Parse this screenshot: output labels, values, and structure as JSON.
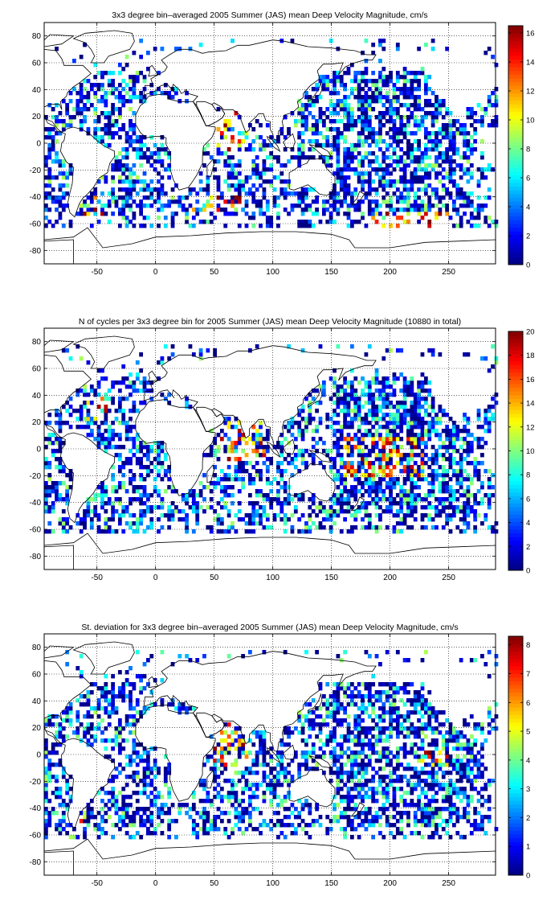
{
  "chart_data": [
    {
      "type": "heatmap",
      "title": "3x3 degree bin–averaged 2005 Summer (JAS) mean Deep Velocity Magnitude, cm/s",
      "xlabel": "",
      "ylabel": "",
      "xlim": [
        -95,
        290
      ],
      "ylim": [
        -90,
        90
      ],
      "x_ticks": [
        -50,
        0,
        50,
        100,
        150,
        200,
        250
      ],
      "y_ticks": [
        -80,
        -60,
        -40,
        -20,
        0,
        20,
        40,
        60,
        80
      ],
      "grid": true,
      "colorbar": {
        "min": 0,
        "max": 16.5,
        "ticks": [
          0,
          2,
          4,
          6,
          8,
          10,
          12,
          14,
          16
        ],
        "colormap": "jet"
      },
      "bin_size_deg": 3,
      "seed": 11,
      "hot_lon_bands": [
        [
          -70,
          -45,
          -60,
          -40
        ],
        [
          30,
          75,
          -50,
          -35
        ],
        [
          185,
          250,
          -62,
          -50
        ],
        [
          50,
          80,
          -5,
          25
        ]
      ]
    },
    {
      "type": "heatmap",
      "title": "N of cycles per 3x3 degree bin for 2005 Summer (JAS) mean Deep Velocity Magnitude (10880 in total)",
      "xlabel": "",
      "ylabel": "",
      "xlim": [
        -95,
        290
      ],
      "ylim": [
        -90,
        90
      ],
      "x_ticks": [
        -50,
        0,
        50,
        100,
        150,
        200,
        250
      ],
      "y_ticks": [
        -80,
        -60,
        -40,
        -20,
        0,
        20,
        40,
        60,
        80
      ],
      "grid": true,
      "colorbar": {
        "min": 0,
        "max": 20,
        "ticks": [
          0,
          2,
          4,
          6,
          8,
          10,
          12,
          14,
          16,
          18,
          20
        ],
        "colormap": "jet"
      },
      "bin_size_deg": 3,
      "seed": 23,
      "hot_lon_bands": [
        [
          55,
          95,
          -10,
          25
        ],
        [
          160,
          230,
          -20,
          10
        ],
        [
          -60,
          -40,
          20,
          40
        ]
      ]
    },
    {
      "type": "heatmap",
      "title": "St. deviation for 3x3 degree bin–averaged 2005 Summer (JAS) mean Deep Velocity Magnitude, cm/s",
      "xlabel": "",
      "ylabel": "",
      "xlim": [
        -95,
        290
      ],
      "ylim": [
        -90,
        90
      ],
      "x_ticks": [
        -50,
        0,
        50,
        100,
        150,
        200,
        250
      ],
      "y_ticks": [
        -80,
        -60,
        -40,
        -20,
        0,
        20,
        40,
        60,
        80
      ],
      "grid": true,
      "colorbar": {
        "min": 0,
        "max": 8.3,
        "ticks": [
          0,
          1,
          2,
          3,
          4,
          5,
          6,
          7,
          8
        ],
        "colormap": "jet"
      },
      "bin_size_deg": 3,
      "seed": 37,
      "hot_lon_bands": [
        [
          50,
          80,
          -10,
          25
        ],
        [
          225,
          250,
          -10,
          5
        ],
        [
          -70,
          -60,
          -50,
          -40
        ]
      ]
    }
  ]
}
